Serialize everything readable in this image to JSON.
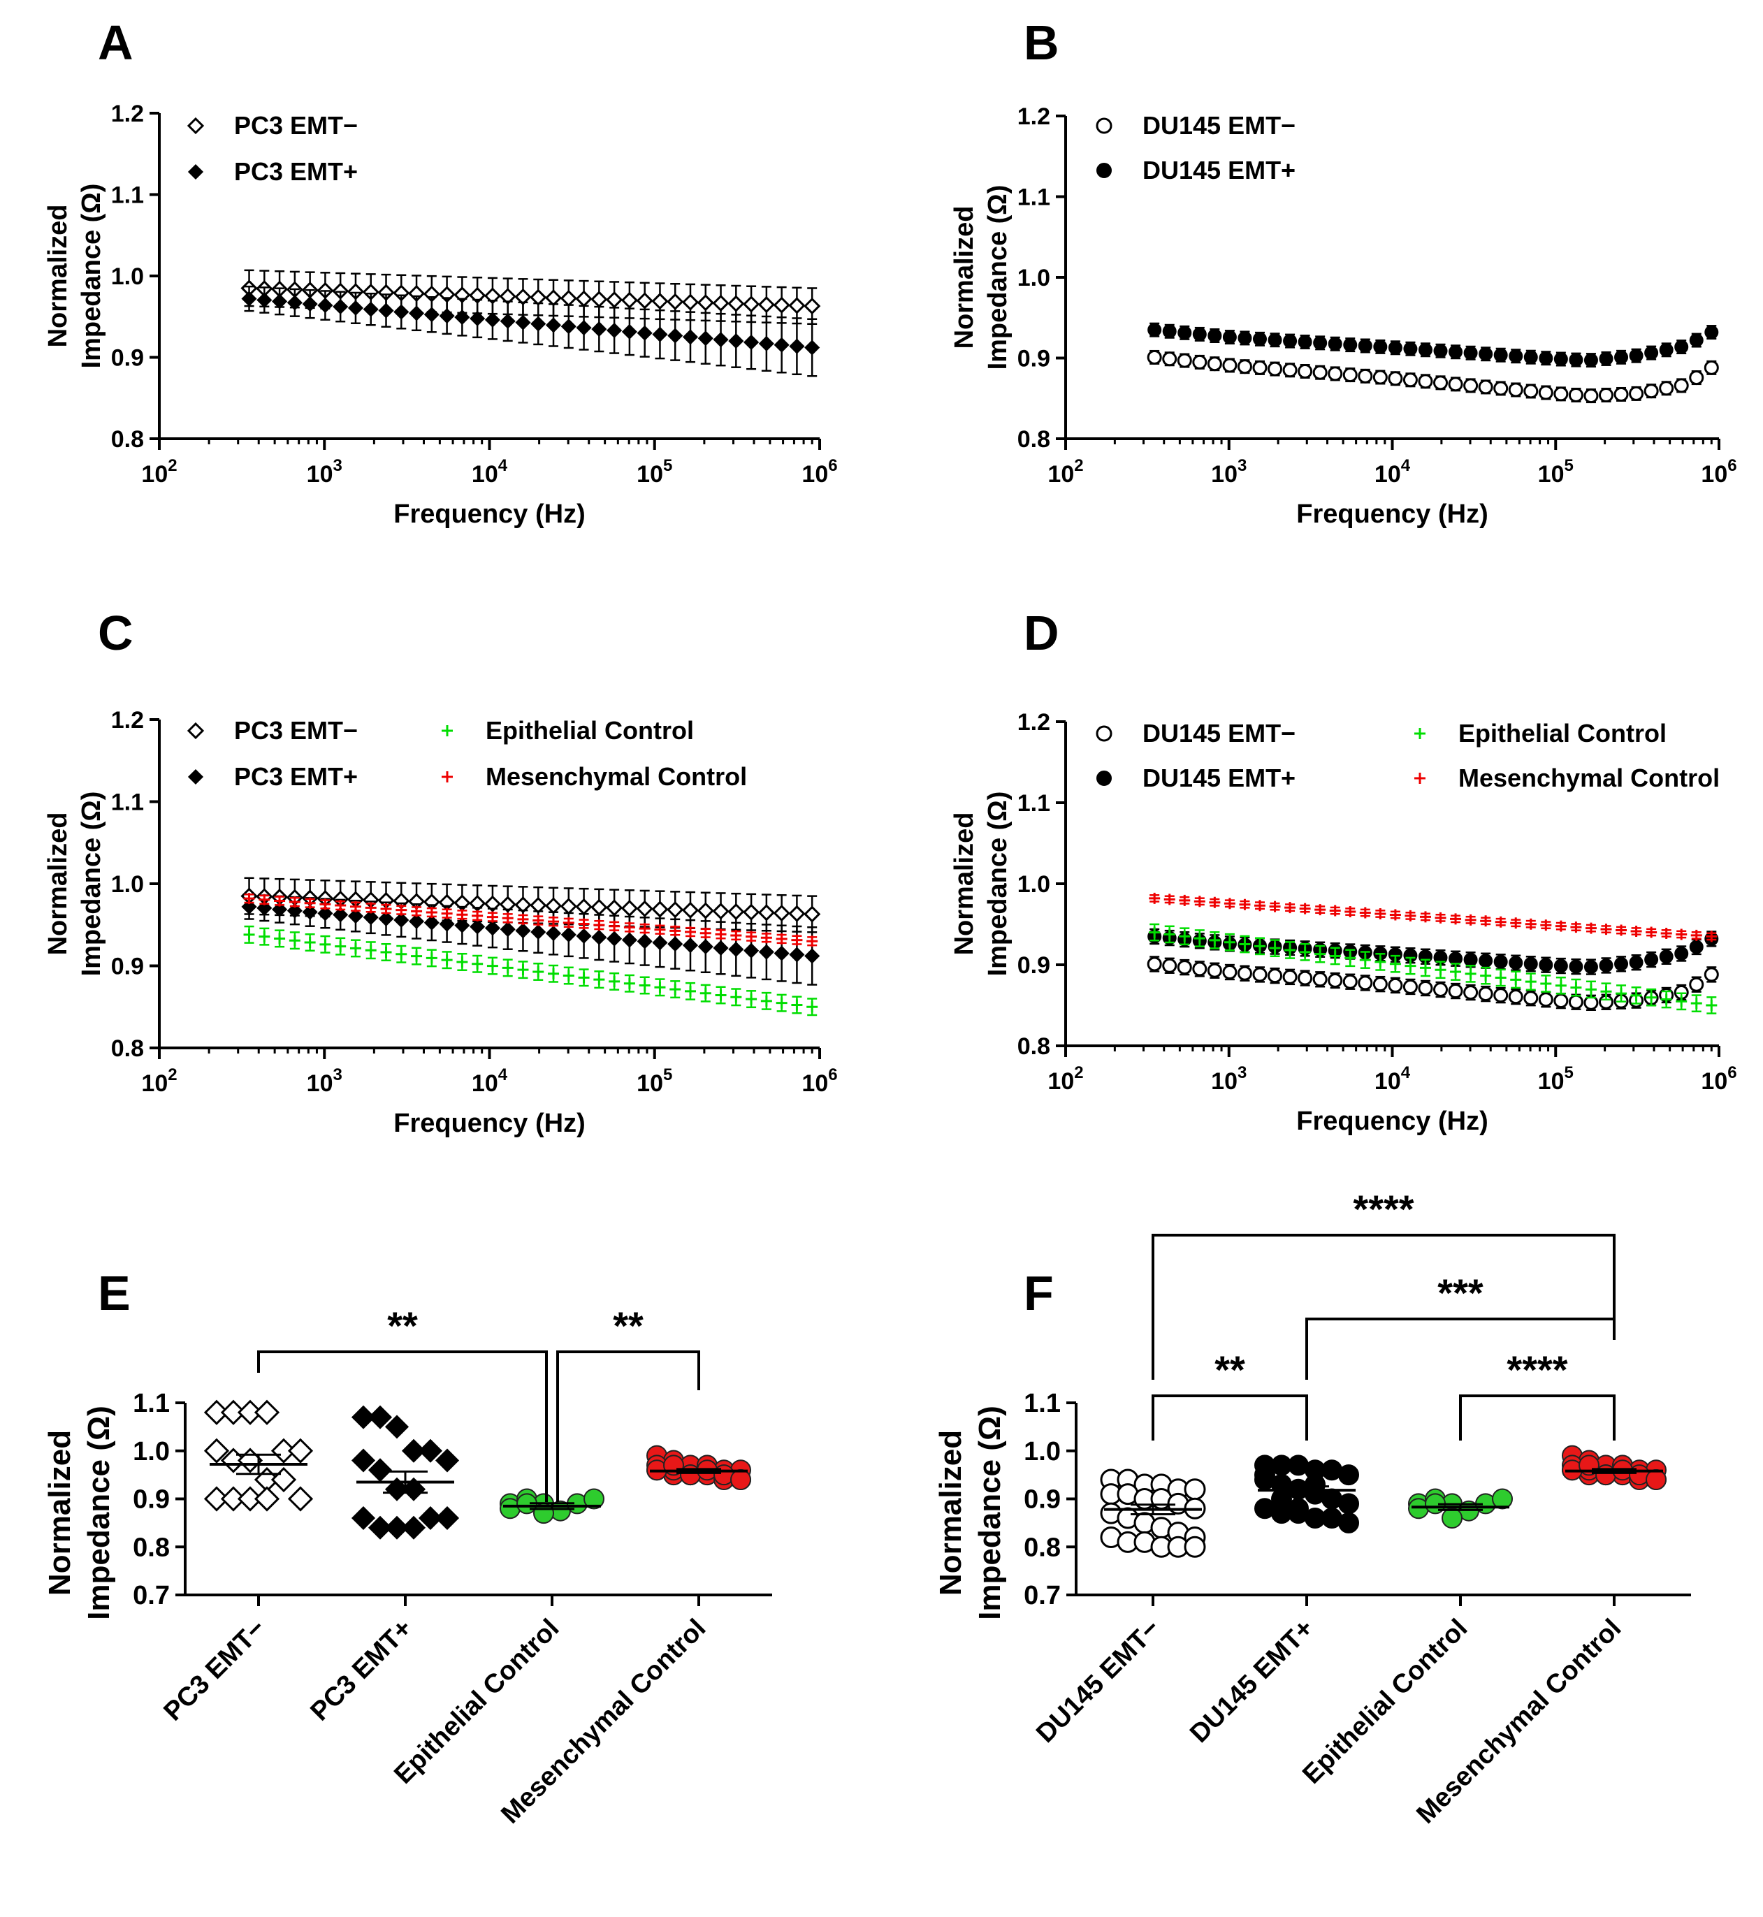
{
  "figure": {
    "common": {
      "ylabel_line1": "Normalized",
      "ylabel_line2": "Impedance (Ω)",
      "xlabel": "Frequency (Hz)"
    },
    "panels": [
      {
        "letter": "A"
      },
      {
        "letter": "B"
      },
      {
        "letter": "C"
      },
      {
        "letter": "D"
      },
      {
        "letter": "E"
      },
      {
        "letter": "F"
      }
    ]
  },
  "chart_data": [
    {
      "panel": "A",
      "type": "scatter",
      "xscale": "log",
      "xlim": [
        100,
        1000000
      ],
      "ylim": [
        0.8,
        1.2
      ],
      "xtick_labels": [
        "10^2",
        "10^3",
        "10^4",
        "10^5",
        "10^6"
      ],
      "yticks": [
        "0.8",
        "0.9",
        "1.0",
        "1.1",
        "1.2"
      ],
      "xlabel": "Frequency (Hz)",
      "ylabel": "Normalized Impedance (Ω)",
      "legend_position": "top-left",
      "series": [
        {
          "name": "PC3 EMT−",
          "marker": "open-diamond",
          "color": "#000000",
          "x_range": [
            350,
            900000
          ],
          "y_start": 0.985,
          "y_end": 0.963,
          "err": 0.022,
          "points": 38
        },
        {
          "name": "PC3 EMT+",
          "marker": "filled-diamond",
          "color": "#000000",
          "x_range": [
            350,
            900000
          ],
          "y_start": 0.972,
          "y_end": 0.912,
          "err_start": 0.015,
          "err_end": 0.035,
          "points": 38
        }
      ]
    },
    {
      "panel": "B",
      "type": "scatter",
      "xscale": "log",
      "xlim": [
        100,
        1000000
      ],
      "ylim": [
        0.8,
        1.2
      ],
      "xtick_labels": [
        "10^2",
        "10^3",
        "10^4",
        "10^5",
        "10^6"
      ],
      "yticks": [
        "0.8",
        "0.9",
        "1.0",
        "1.1",
        "1.2"
      ],
      "xlabel": "Frequency (Hz)",
      "ylabel": "Normalized Impedance (Ω)",
      "legend_position": "top-left",
      "series": [
        {
          "name": "DU145 EMT−",
          "marker": "open-circle",
          "color": "#000000",
          "x_range": [
            350,
            900000
          ],
          "anchors_logx_y": [
            [
              2.54,
              0.901
            ],
            [
              3.0,
              0.891
            ],
            [
              4.0,
              0.875
            ],
            [
              5.0,
              0.856
            ],
            [
              5.2,
              0.853
            ],
            [
              5.5,
              0.856
            ],
            [
              5.8,
              0.867
            ],
            [
              5.95,
              0.888
            ]
          ],
          "err": 0.008,
          "points": 38
        },
        {
          "name": "DU145 EMT+",
          "marker": "filled-circle",
          "color": "#000000",
          "x_range": [
            350,
            900000
          ],
          "anchors_logx_y": [
            [
              2.54,
              0.935
            ],
            [
              3.0,
              0.926
            ],
            [
              4.0,
              0.913
            ],
            [
              5.0,
              0.899
            ],
            [
              5.2,
              0.897
            ],
            [
              5.5,
              0.903
            ],
            [
              5.8,
              0.915
            ],
            [
              5.95,
              0.932
            ]
          ],
          "err": 0.008,
          "points": 38
        }
      ]
    },
    {
      "panel": "C",
      "type": "scatter",
      "xscale": "log",
      "xlim": [
        100,
        1000000
      ],
      "ylim": [
        0.8,
        1.2
      ],
      "xtick_labels": [
        "10^2",
        "10^3",
        "10^4",
        "10^5",
        "10^6"
      ],
      "yticks": [
        "0.8",
        "0.9",
        "1.0",
        "1.1",
        "1.2"
      ],
      "xlabel": "Frequency (Hz)",
      "ylabel": "Normalized Impedance (Ω)",
      "legend_position": "top",
      "series": [
        {
          "name": "PC3 EMT−",
          "marker": "open-diamond",
          "color": "#000000",
          "x_range": [
            350,
            900000
          ],
          "y_start": 0.985,
          "y_end": 0.963,
          "err": 0.022,
          "points": 38
        },
        {
          "name": "PC3 EMT+",
          "marker": "filled-diamond",
          "color": "#000000",
          "x_range": [
            350,
            900000
          ],
          "y_start": 0.972,
          "y_end": 0.912,
          "err_start": 0.015,
          "err_end": 0.035,
          "points": 38
        },
        {
          "name": "Epithelial Control",
          "marker": "plus",
          "color": "#00dd00",
          "x_range": [
            350,
            900000
          ],
          "y_start": 0.938,
          "y_end": 0.85,
          "err": 0.01,
          "points": 38
        },
        {
          "name": "Mesenchymal Control",
          "marker": "plus",
          "color": "#ee0000",
          "x_range": [
            350,
            900000
          ],
          "y_start": 0.982,
          "y_end": 0.93,
          "err": 0.005,
          "points": 38
        }
      ]
    },
    {
      "panel": "D",
      "type": "scatter",
      "xscale": "log",
      "xlim": [
        100,
        1000000
      ],
      "ylim": [
        0.8,
        1.2
      ],
      "xtick_labels": [
        "10^2",
        "10^3",
        "10^4",
        "10^5",
        "10^6"
      ],
      "yticks": [
        "0.8",
        "0.9",
        "1.0",
        "1.1",
        "1.2"
      ],
      "xlabel": "Frequency (Hz)",
      "ylabel": "Normalized Impedance (Ω)",
      "legend_position": "top",
      "series": [
        {
          "name": "DU145 EMT−",
          "marker": "open-circle",
          "color": "#000000",
          "x_range": [
            350,
            900000
          ],
          "anchors_logx_y": [
            [
              2.54,
              0.901
            ],
            [
              3.0,
              0.891
            ],
            [
              4.0,
              0.875
            ],
            [
              5.0,
              0.856
            ],
            [
              5.2,
              0.853
            ],
            [
              5.5,
              0.856
            ],
            [
              5.8,
              0.867
            ],
            [
              5.95,
              0.888
            ]
          ],
          "err": 0.009,
          "points": 38
        },
        {
          "name": "DU145 EMT+",
          "marker": "filled-circle",
          "color": "#000000",
          "x_range": [
            350,
            900000
          ],
          "anchors_logx_y": [
            [
              2.54,
              0.935
            ],
            [
              3.0,
              0.926
            ],
            [
              4.0,
              0.913
            ],
            [
              5.0,
              0.899
            ],
            [
              5.2,
              0.897
            ],
            [
              5.5,
              0.903
            ],
            [
              5.8,
              0.915
            ],
            [
              5.95,
              0.932
            ]
          ],
          "err": 0.009,
          "points": 38
        },
        {
          "name": "Epithelial Control",
          "marker": "plus",
          "color": "#00dd00",
          "x_range": [
            350,
            900000
          ],
          "y_start": 0.94,
          "y_end": 0.85,
          "err": 0.01,
          "points": 38
        },
        {
          "name": "Mesenchymal Control",
          "marker": "plus",
          "color": "#ee0000",
          "x_range": [
            350,
            900000
          ],
          "y_start": 0.982,
          "y_end": 0.935,
          "err": 0.004,
          "points": 38
        }
      ]
    },
    {
      "panel": "E",
      "type": "scatter",
      "ylim": [
        0.7,
        1.1
      ],
      "yticks": [
        "0.7",
        "0.8",
        "0.9",
        "1.0",
        "1.1"
      ],
      "ylabel": "Normalized Impedance (Ω)",
      "categories": [
        "PC3 EMT−",
        "PC3 EMT+",
        "Epithelial Control",
        "Mesenchymal Control"
      ],
      "groups": [
        {
          "name": "PC3 EMT−",
          "marker": "open-diamond",
          "color": "#000000",
          "mean": 0.972,
          "sem": 0.02,
          "values": [
            1.08,
            1.08,
            1.08,
            1.08,
            1.0,
            1.0,
            1.0,
            0.98,
            0.98,
            0.94,
            0.94,
            0.9,
            0.9,
            0.9,
            0.9,
            0.9
          ]
        },
        {
          "name": "PC3 EMT+",
          "marker": "filled-diamond",
          "color": "#000000",
          "mean": 0.935,
          "sem": 0.022,
          "values": [
            1.07,
            1.07,
            1.05,
            1.0,
            1.0,
            0.98,
            0.98,
            0.96,
            0.92,
            0.92,
            0.86,
            0.86,
            0.86,
            0.84,
            0.84,
            0.84
          ]
        },
        {
          "name": "Epithelial Control",
          "marker": "filled-circle",
          "color": "#2ecc2e",
          "mean": 0.885,
          "sem": 0.006,
          "values": [
            0.89,
            0.9,
            0.89,
            0.875,
            0.89,
            0.9,
            0.88,
            0.89,
            0.87
          ]
        },
        {
          "name": "Mesenchymal Control",
          "marker": "filled-circle",
          "color": "#e81818",
          "mean": 0.958,
          "sem": 0.004,
          "values": [
            0.99,
            0.98,
            0.97,
            0.97,
            0.96,
            0.96,
            0.96,
            0.95,
            0.95,
            0.95,
            0.94,
            0.94,
            0.97,
            0.96,
            0.95,
            0.96,
            0.95,
            0.94,
            0.96,
            0.97
          ]
        }
      ],
      "significance": [
        {
          "from": 0,
          "to": 2,
          "label": "**"
        },
        {
          "from": 2,
          "to": 3,
          "label": "**"
        }
      ]
    },
    {
      "panel": "F",
      "type": "scatter",
      "ylim": [
        0.7,
        1.1
      ],
      "yticks": [
        "0.7",
        "0.8",
        "0.9",
        "1.0",
        "1.1"
      ],
      "ylabel": "Normalized Impedance (Ω)",
      "categories": [
        "DU145 EMT−",
        "DU145 EMT+",
        "Epithelial Control",
        "Mesenchymal Control"
      ],
      "groups": [
        {
          "name": "DU145 EMT−",
          "marker": "open-circle",
          "color": "#000000",
          "mean": 0.878,
          "sem": 0.01,
          "values": [
            0.94,
            0.94,
            0.93,
            0.93,
            0.92,
            0.92,
            0.91,
            0.91,
            0.9,
            0.9,
            0.89,
            0.88,
            0.87,
            0.86,
            0.85,
            0.84,
            0.83,
            0.82,
            0.82,
            0.81,
            0.81,
            0.8,
            0.8,
            0.8
          ]
        },
        {
          "name": "DU145 EMT+",
          "marker": "filled-circle",
          "color": "#000000",
          "mean": 0.918,
          "sem": 0.008,
          "values": [
            0.97,
            0.97,
            0.97,
            0.96,
            0.96,
            0.95,
            0.94,
            0.93,
            0.92,
            0.91,
            0.9,
            0.89,
            0.88,
            0.87,
            0.87,
            0.86,
            0.86,
            0.85,
            0.95,
            0.9,
            0.88,
            0.93
          ]
        },
        {
          "name": "Epithelial Control",
          "marker": "filled-circle",
          "color": "#2ecc2e",
          "mean": 0.883,
          "sem": 0.006,
          "values": [
            0.89,
            0.9,
            0.89,
            0.875,
            0.89,
            0.9,
            0.88,
            0.89,
            0.86
          ]
        },
        {
          "name": "Mesenchymal Control",
          "marker": "filled-circle",
          "color": "#e81818",
          "mean": 0.958,
          "sem": 0.004,
          "values": [
            0.99,
            0.98,
            0.97,
            0.97,
            0.96,
            0.96,
            0.96,
            0.95,
            0.95,
            0.95,
            0.94,
            0.94,
            0.97,
            0.96,
            0.95,
            0.96,
            0.95,
            0.94,
            0.96,
            0.97
          ]
        }
      ],
      "significance": [
        {
          "from": 0,
          "to": 3,
          "label": "****"
        },
        {
          "from": 1,
          "to": 3,
          "label": "***"
        },
        {
          "from": 0,
          "to": 1,
          "label": "**"
        },
        {
          "from": 2,
          "to": 3,
          "label": "****"
        }
      ]
    }
  ]
}
